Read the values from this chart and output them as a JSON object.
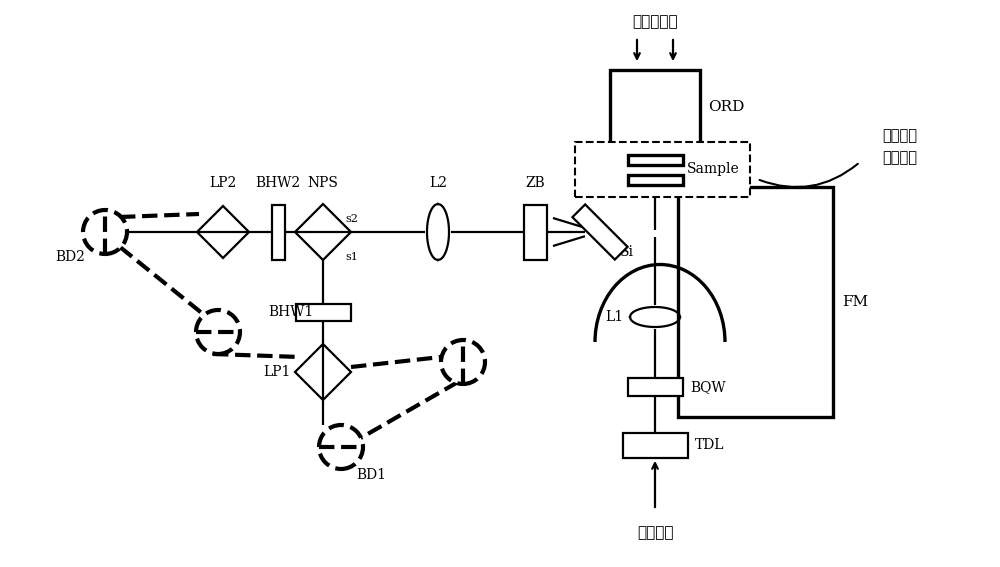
{
  "text_thz": "太赫茲脈沖",
  "text_probe": "探測脈沖",
  "text_sample_region": "待測樣本\n放置區域",
  "label_ORD": "ORD",
  "label_Sample": "Sample",
  "label_FM": "FM",
  "label_Si": "Si",
  "label_ZB": "ZB",
  "label_L2": "L2",
  "label_L1": "L1",
  "label_BQW": "BQW",
  "label_TDL": "TDL",
  "label_NPS": "NPS",
  "label_BHW2": "BHW2",
  "label_BHW1": "BHW1",
  "label_LP2": "LP2",
  "label_LP1": "LP1",
  "label_BD2": "BD2",
  "label_BD1": "BD1",
  "label_s1": "s1",
  "label_s2": "s2",
  "lw": 1.6,
  "lw_thick": 2.4,
  "lw_dash": 3.0
}
